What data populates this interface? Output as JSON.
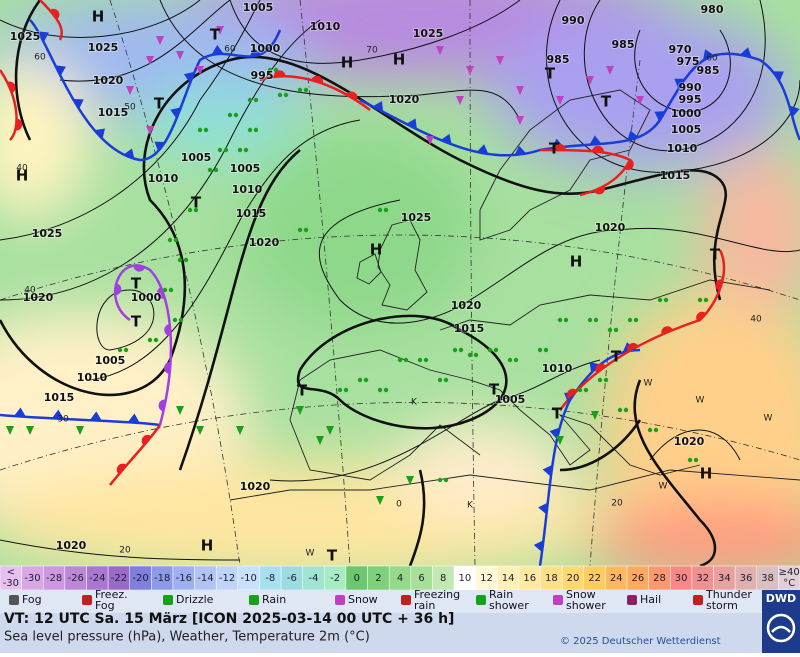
{
  "map": {
    "pressure_labels": [
      "1005",
      "1010",
      "1025",
      "990",
      "980",
      "985",
      "985",
      "970",
      "975",
      "985",
      "1025",
      "1025",
      "1000",
      "995",
      "1020",
      "1020",
      "990",
      "995",
      "1000",
      "1005",
      "1010",
      "1015",
      "1015",
      "1005",
      "1005",
      "1010",
      "1010",
      "1015",
      "1025",
      "1020",
      "1025",
      "1020",
      "1020",
      "1000",
      "1020",
      "1015",
      "1005",
      "1010",
      "1010",
      "1015",
      "1005",
      "1020",
      "1020",
      "1020"
    ],
    "isotherm_labels": [
      "60",
      "70",
      "40",
      "40",
      "40",
      "30",
      "20",
      "20",
      "0",
      "50",
      "60",
      "60"
    ],
    "pressure_centers": [
      "H",
      "H",
      "H",
      "H",
      "H",
      "H",
      "H",
      "H"
    ],
    "trough_labels": [
      "T",
      "T",
      "T",
      "T",
      "T",
      "T",
      "T",
      "T",
      "T",
      "T",
      "T",
      "T",
      "T",
      "T"
    ],
    "other_labels": [
      "K",
      "K",
      "W",
      "W",
      "W",
      "W",
      "W"
    ]
  },
  "temperature_scale": [
    {
      "label": [
        "<",
        "-30"
      ],
      "color": "#e6c0f0"
    },
    {
      "label": "-30",
      "color": "#d9a6e6"
    },
    {
      "label": "-28",
      "color": "#cc99e0"
    },
    {
      "label": "-26",
      "color": "#bb88d8"
    },
    {
      "label": "-24",
      "color": "#aa77d0"
    },
    {
      "label": "-22",
      "color": "#9a6ac8"
    },
    {
      "label": "-20",
      "color": "#7f7fe0"
    },
    {
      "label": "-18",
      "color": "#8c9ae8"
    },
    {
      "label": "-16",
      "color": "#9fb0f0"
    },
    {
      "label": "-14",
      "color": "#b0c4f5"
    },
    {
      "label": "-12",
      "color": "#bed4f8"
    },
    {
      "label": "-10",
      "color": "#c8e0fb"
    },
    {
      "label": "-8",
      "color": "#a8e0f0"
    },
    {
      "label": "-6",
      "color": "#9cdce0"
    },
    {
      "label": "-4",
      "color": "#a0e4d4"
    },
    {
      "label": "-2",
      "color": "#a8ecc4"
    },
    {
      "label": "0",
      "color": "#6cc86c"
    },
    {
      "label": "2",
      "color": "#7fd07a"
    },
    {
      "label": "4",
      "color": "#95d98a"
    },
    {
      "label": "6",
      "color": "#a8e09a"
    },
    {
      "label": "8",
      "color": "#c0e8b0"
    },
    {
      "label": "10",
      "color": "#ffffff"
    },
    {
      "label": "12",
      "color": "#fff8d8"
    },
    {
      "label": "14",
      "color": "#fff0b8"
    },
    {
      "label": "16",
      "color": "#ffe8a0"
    },
    {
      "label": "18",
      "color": "#ffe088"
    },
    {
      "label": "20",
      "color": "#ffd870"
    },
    {
      "label": "22",
      "color": "#ffcc60"
    },
    {
      "label": "24",
      "color": "#ffb860"
    },
    {
      "label": "26",
      "color": "#ffa860"
    },
    {
      "label": "28",
      "color": "#ff9870"
    },
    {
      "label": "30",
      "color": "#f88888"
    },
    {
      "label": "32",
      "color": "#f09090"
    },
    {
      "label": "34",
      "color": "#e8a0a0"
    },
    {
      "label": "36",
      "color": "#e0b0b0"
    },
    {
      "label": "38",
      "color": "#d8c0c0"
    },
    {
      "label": [
        "≥40",
        "°C"
      ],
      "color": "#e0d0d8"
    }
  ],
  "legend": [
    {
      "label": [
        "Fog"
      ]
    },
    {
      "label": [
        "Freez.",
        "Fog"
      ]
    },
    {
      "label": [
        "Drizzle"
      ]
    },
    {
      "label": [
        "Rain"
      ]
    },
    {
      "label": [
        "Snow"
      ]
    },
    {
      "label": [
        "Freezing",
        "rain"
      ]
    },
    {
      "label": [
        "Rain",
        "shower"
      ]
    },
    {
      "label": [
        "Snow",
        "shower"
      ]
    },
    {
      "label": [
        "Hail"
      ]
    },
    {
      "label": [
        "Thunder",
        "storm"
      ]
    }
  ],
  "footer": {
    "valid_time": "VT: 12 UTC Sa.  15 März [ICON 2025-03-14  00 UTC + 36 h]",
    "description": "Sea level pressure (hPa), Weather, Temperature 2m (°C)",
    "copyright": "© 2025 Deutscher Wetterdienst",
    "logo": "DWD"
  }
}
